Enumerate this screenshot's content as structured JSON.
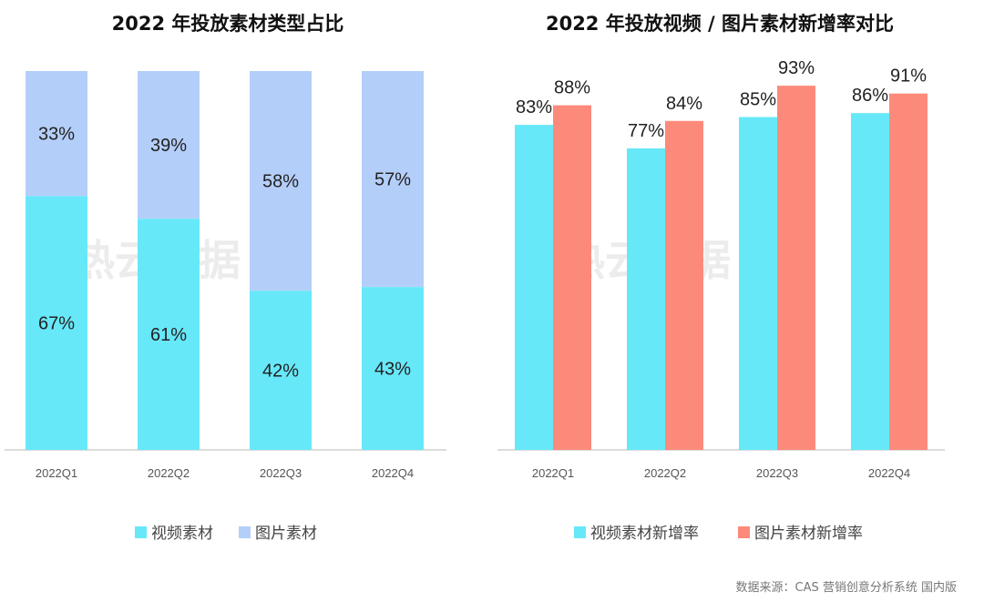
{
  "colors": {
    "video": "#67e8f9",
    "image_share": "#b4cefa",
    "image_growth": "#fc8a7a",
    "axis": "#d0d0d0"
  },
  "watermark": "热云数据",
  "source": "数据来源：CAS 营销创意分析系统 国内版",
  "chart_data": [
    {
      "type": "bar",
      "stacked": true,
      "title": "2022 年投放素材类型占比",
      "categories": [
        "2022Q1",
        "2022Q2",
        "2022Q3",
        "2022Q4"
      ],
      "series": [
        {
          "name": "视频素材",
          "values": [
            67,
            61,
            42,
            43
          ],
          "labels": [
            "67%",
            "61%",
            "42%",
            "43%"
          ]
        },
        {
          "name": "图片素材",
          "values": [
            33,
            39,
            58,
            57
          ],
          "labels": [
            "33%",
            "39%",
            "58%",
            "57%"
          ]
        }
      ],
      "ylim": [
        0,
        100
      ],
      "grid": false,
      "legend": "bottom"
    },
    {
      "type": "bar",
      "stacked": false,
      "title": "2022 年投放视频 / 图片素材新增率对比",
      "categories": [
        "2022Q1",
        "2022Q2",
        "2022Q3",
        "2022Q4"
      ],
      "series": [
        {
          "name": "视频素材新增率",
          "values": [
            83,
            77,
            85,
            86
          ],
          "labels": [
            "83%",
            "77%",
            "85%",
            "86%"
          ]
        },
        {
          "name": "图片素材新增率",
          "values": [
            88,
            84,
            93,
            91
          ],
          "labels": [
            "88%",
            "84%",
            "93%",
            "91%"
          ]
        }
      ],
      "ylim": [
        0,
        100
      ],
      "grid": false,
      "legend": "bottom"
    }
  ]
}
